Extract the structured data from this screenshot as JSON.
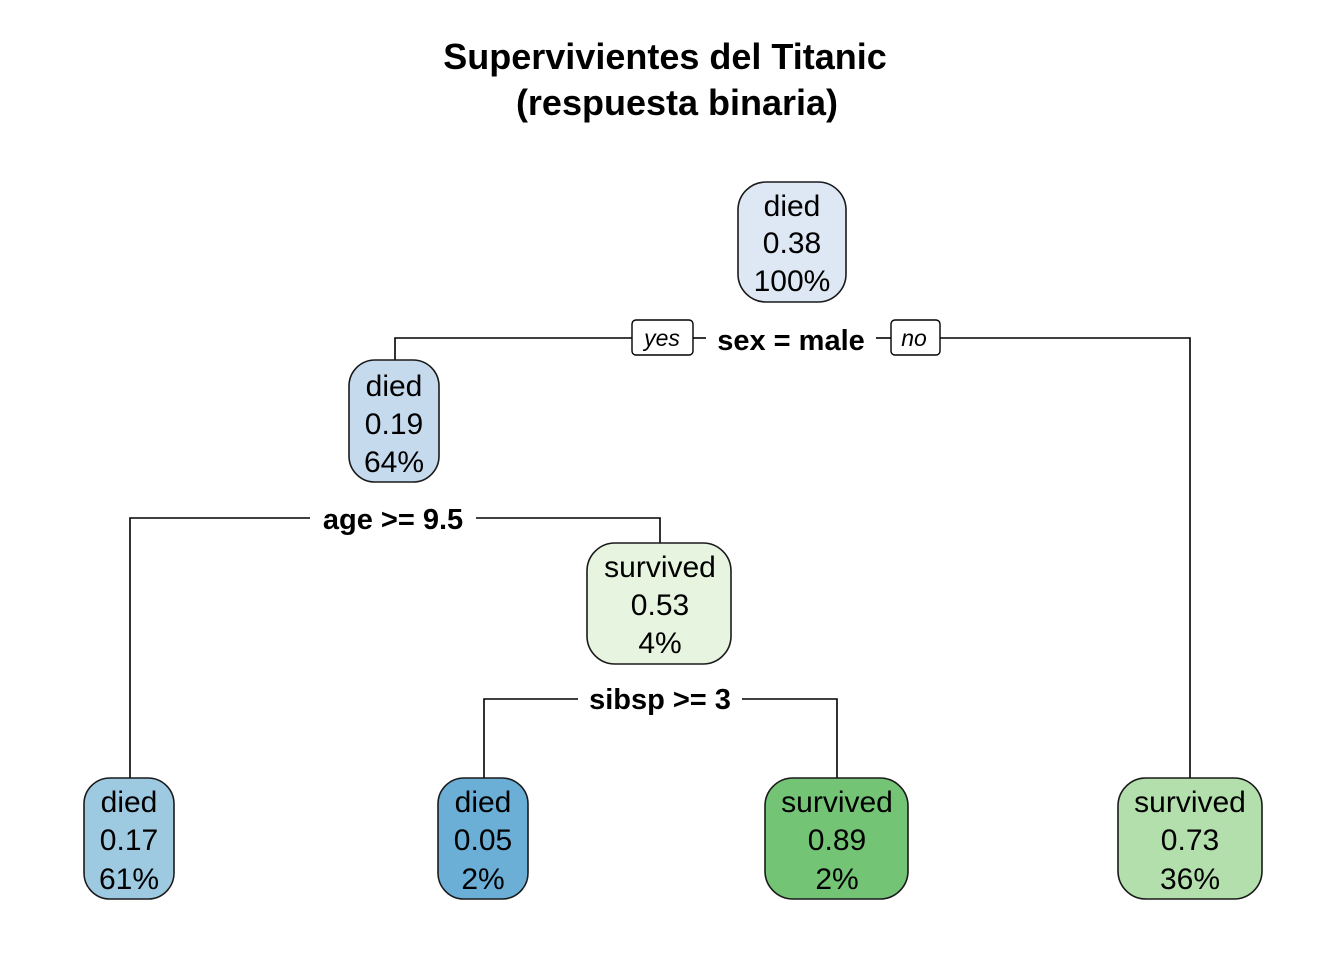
{
  "title": {
    "line1": "Supervivientes del Titanic",
    "line2": "(respuesta binaria)"
  },
  "colors": {
    "died_light": "#dde8f4",
    "died_mid": "#c6daee",
    "died_medium": "#9ecae1",
    "died_dark": "#6baed6",
    "survived_light": "#e6f4e0",
    "survived_medium": "#b2dfab",
    "survived_dark": "#74c476",
    "line": "#000000"
  },
  "nodes": [
    {
      "id": "root",
      "class": "died",
      "prob": "0.38",
      "pct": "100%",
      "color_key": "died_light"
    },
    {
      "id": "male",
      "class": "died",
      "prob": "0.19",
      "pct": "64%",
      "color_key": "died_mid"
    },
    {
      "id": "female",
      "class": "survived",
      "prob": "0.73",
      "pct": "36%",
      "color_key": "survived_medium"
    },
    {
      "id": "male-older",
      "class": "died",
      "prob": "0.17",
      "pct": "61%",
      "color_key": "died_medium"
    },
    {
      "id": "male-young",
      "class": "survived",
      "prob": "0.53",
      "pct": "4%",
      "color_key": "survived_light"
    },
    {
      "id": "young-many-sib",
      "class": "died",
      "prob": "0.05",
      "pct": "2%",
      "color_key": "died_dark"
    },
    {
      "id": "young-few-sib",
      "class": "survived",
      "prob": "0.89",
      "pct": "2%",
      "color_key": "survived_dark"
    }
  ],
  "splits": [
    {
      "id": "sex",
      "label": "sex = male"
    },
    {
      "id": "age",
      "label": "age >= 9.5"
    },
    {
      "id": "sibsp",
      "label": "sibsp >= 3"
    }
  ],
  "branch_labels": {
    "yes": "yes",
    "no": "no"
  }
}
